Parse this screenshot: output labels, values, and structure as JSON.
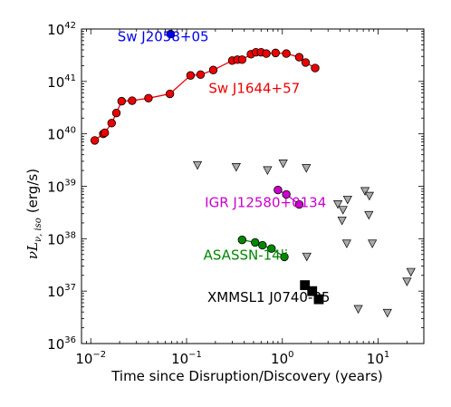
{
  "chart_data": {
    "type": "scatter",
    "xlabel": "Time since Disruption/Discovery (years)",
    "ylabel_main": "νL",
    "ylabel_sub": "ν, iso",
    "ylabel_unit": "(erg/s)",
    "x_scale": "log",
    "y_scale": "log",
    "xlim": [
      0.008,
      30
    ],
    "ylim": [
      1e+36,
      1e+42
    ],
    "x_ticks": [
      {
        "value": 0.01,
        "base": "10",
        "exp": "−2"
      },
      {
        "value": 0.1,
        "base": "10",
        "exp": "−1"
      },
      {
        "value": 1,
        "base": "10",
        "exp": "0"
      },
      {
        "value": 10,
        "base": "10",
        "exp": "1"
      }
    ],
    "y_ticks": [
      {
        "value": 1e+36,
        "base": "10",
        "exp": "36"
      },
      {
        "value": 1e+37,
        "base": "10",
        "exp": "37"
      },
      {
        "value": 1e+38,
        "base": "10",
        "exp": "38"
      },
      {
        "value": 1e+39,
        "base": "10",
        "exp": "39"
      },
      {
        "value": 1e+40,
        "base": "10",
        "exp": "40"
      },
      {
        "value": 1e+41,
        "base": "10",
        "exp": "41"
      },
      {
        "value": 1e+42,
        "base": "10",
        "exp": "42"
      }
    ],
    "legend": "none",
    "grid": false,
    "series": [
      {
        "name": "Sw J2058+05",
        "color": "#0000ee",
        "marker": "circle",
        "connected": false,
        "points": [
          [
            0.068,
            8e+41
          ]
        ]
      },
      {
        "name": "Sw J1644+57",
        "color": "#ee0000",
        "marker": "circle",
        "connected": true,
        "points": [
          [
            0.011,
            7.5e+39
          ],
          [
            0.0135,
            1e+40
          ],
          [
            0.014,
            1.05e+40
          ],
          [
            0.0165,
            1.6e+40
          ],
          [
            0.0185,
            2.5e+40
          ],
          [
            0.021,
            4.2e+40
          ],
          [
            0.027,
            4.3e+40
          ],
          [
            0.04,
            4.8e+40
          ],
          [
            0.067,
            5.8e+40
          ],
          [
            0.11,
            1.3e+41
          ],
          [
            0.14,
            1.35e+41
          ],
          [
            0.19,
            1.65e+41
          ],
          [
            0.3,
            2.5e+41
          ],
          [
            0.34,
            2.6e+41
          ],
          [
            0.38,
            2.6e+41
          ],
          [
            0.47,
            3.3e+41
          ],
          [
            0.53,
            3.6e+41
          ],
          [
            0.6,
            3.6e+41
          ],
          [
            0.68,
            3.4e+41
          ],
          [
            0.85,
            3.5e+41
          ],
          [
            1.1,
            3.4e+41
          ],
          [
            1.5,
            2.9e+41
          ],
          [
            1.75,
            2.3e+41
          ],
          [
            2.2,
            1.8e+41
          ]
        ]
      },
      {
        "name": "IGR J12580+0134",
        "color": "#cc00cc",
        "marker": "circle",
        "connected": true,
        "points": [
          [
            0.9,
            8.5e+38
          ],
          [
            1.1,
            7e+38
          ],
          [
            1.5,
            4.5e+38
          ]
        ]
      },
      {
        "name": "ASASSN-14li",
        "color": "#008800",
        "marker": "circle",
        "connected": true,
        "points": [
          [
            0.38,
            9.5e+37
          ],
          [
            0.52,
            8.5e+37
          ],
          [
            0.62,
            7.5e+37
          ],
          [
            0.77,
            6.5e+37
          ],
          [
            1.05,
            4.5e+37
          ]
        ]
      },
      {
        "name": "XMMSL1 J0740-85",
        "color": "#000000",
        "marker": "square",
        "connected": false,
        "points": [
          [
            1.72,
            1.3e+37
          ],
          [
            2.05,
            1e+37
          ],
          [
            2.4,
            7e+36
          ]
        ]
      },
      {
        "name": "",
        "color": "#aaaaaa",
        "marker": "triangle-down",
        "connected": false,
        "points": [
          [
            0.13,
            2.5e+39
          ],
          [
            0.33,
            2.3e+39
          ],
          [
            0.7,
            2e+39
          ],
          [
            1.02,
            2.7e+39
          ],
          [
            1.78,
            2.2e+39
          ],
          [
            1.8,
            4.5e+37
          ],
          [
            3.8,
            4.5e+38
          ],
          [
            4.2,
            2.2e+38
          ],
          [
            4.3,
            3.5e+38
          ],
          [
            4.7,
            8e+37
          ],
          [
            4.8,
            5.5e+38
          ],
          [
            6.2,
            4.5e+36
          ],
          [
            7.3,
            8e+38
          ],
          [
            8.0,
            2.8e+38
          ],
          [
            8.1,
            6.5e+38
          ],
          [
            8.7,
            8e+37
          ],
          [
            12.5,
            3.8e+36
          ],
          [
            20.0,
            1.5e+37
          ],
          [
            22.0,
            2.3e+37
          ]
        ]
      }
    ],
    "annotations": [
      {
        "text": "Sw J2058+05",
        "color": "#0000ee",
        "x": 0.019,
        "y": 5.8e+41
      },
      {
        "text": "Sw J1644+57",
        "color": "#ee0000",
        "x": 0.17,
        "y": 6e+40
      },
      {
        "text": "IGR J12580+0134",
        "color": "#cc00cc",
        "x": 0.155,
        "y": 4e+38
      },
      {
        "text": "ASASSN-14li",
        "color": "#008800",
        "x": 0.15,
        "y": 4e+37
      },
      {
        "text": "XMMSL1 J0740-85",
        "color": "#000000",
        "x": 0.165,
        "y": 6.2e+36
      }
    ]
  }
}
